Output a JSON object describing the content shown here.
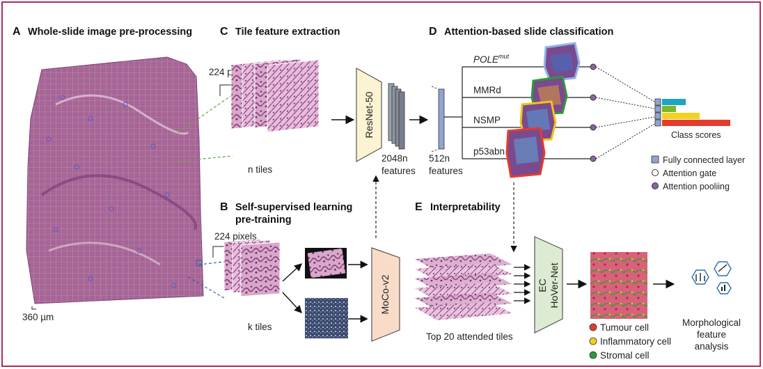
{
  "panels": {
    "a": {
      "letter": "A",
      "title": "Whole-slide image pre-processing",
      "scale": "360 µm"
    },
    "b": {
      "letter": "B",
      "title_line1": "Self-supervised learning",
      "title_line2": "pre-training",
      "pixels": "224 pixels",
      "tiles": "k tiles",
      "model": "MoCo-v2"
    },
    "c": {
      "letter": "C",
      "title": "Tile feature extraction",
      "pixels": "224 pixels",
      "tiles": "n tiles",
      "model": "ResNet-50",
      "features_n": "2048n",
      "features_word": "features"
    },
    "d": {
      "letter": "D",
      "title": "Attention-based slide classification",
      "features_n": "512n",
      "features_word": "features",
      "classes": [
        {
          "name": "POLE",
          "sup": "mut",
          "color": "#8fb4e8"
        },
        {
          "name": "MMRd",
          "sup": "",
          "color": "#2e9a3a"
        },
        {
          "name": "NSMP",
          "sup": "",
          "color": "#f2c21b"
        },
        {
          "name": "p53abn",
          "sup": "",
          "color": "#e53b2c"
        }
      ],
      "class_scores_label": "Class scores",
      "score_bars": [
        {
          "color": "#1aa6c4",
          "value": 0.35
        },
        {
          "color": "#7ab82e",
          "value": 0.2
        },
        {
          "color": "#f2d21b",
          "value": 0.55
        },
        {
          "color": "#e53b2c",
          "value": 1.0
        }
      ],
      "legend": [
        {
          "label": "Fully connected layer",
          "symbol": "square",
          "color": "#8fa5cf"
        },
        {
          "label": "Attention gate",
          "symbol": "circle-open",
          "color": "#ffffff"
        },
        {
          "label": "Attention pooliing",
          "symbol": "circle",
          "color": "#8a63a8"
        }
      ]
    },
    "e": {
      "letter": "E",
      "title": "Interpretability",
      "tiles": "Top 20 attended tiles",
      "model_line1": "EC",
      "model_line2": "HoVer-Net",
      "cells": [
        {
          "label": "Tumour cell",
          "color": "#e53b2c"
        },
        {
          "label": "Inflammatory cell",
          "color": "#f2d21b"
        },
        {
          "label": "Stromal cell",
          "color": "#2e9a3a"
        }
      ],
      "analysis_line1": "Morphological",
      "analysis_line2": "feature",
      "analysis_line3": "analysis"
    }
  },
  "colors": {
    "frame": "#b22a55",
    "tissue": "#a8649a",
    "tissue_dark": "#7c3f78",
    "grid": "#9bbf6a",
    "resnet_fill": "#fbf3d2",
    "moco_fill": "#f8dcc8",
    "hover_fill": "#dcebd2"
  }
}
